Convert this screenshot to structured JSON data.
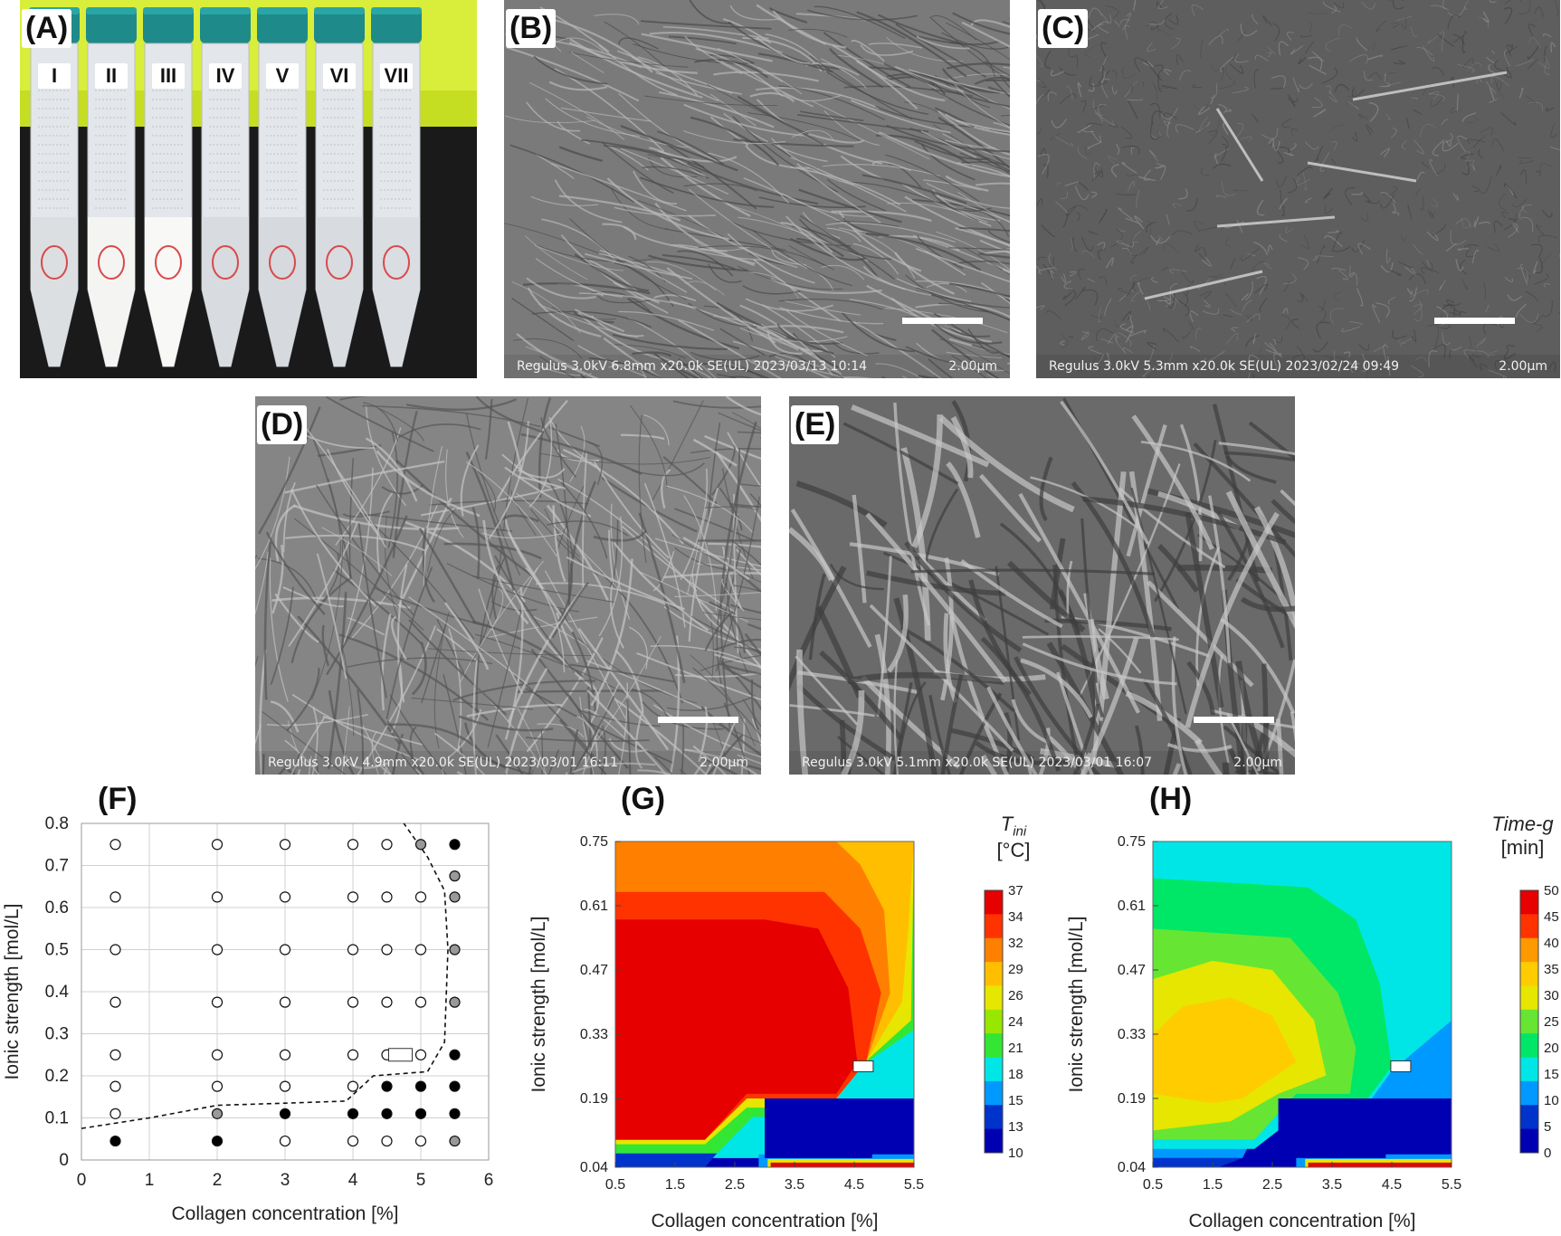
{
  "panels": {
    "A": {
      "label": "(A)",
      "tube_labels": [
        "I",
        "II",
        "III",
        "IV",
        "V",
        "VI",
        "VII"
      ]
    },
    "B": {
      "label": "(B)",
      "footer_left": "Regulus 3.0kV 6.8mm x20.0k SE(UL) 2023/03/13 10:14",
      "footer_right": "2.00μm"
    },
    "C": {
      "label": "(C)",
      "footer_left": "Regulus 3.0kV 5.3mm x20.0k SE(UL) 2023/02/24 09:49",
      "footer_right": "2.00μm"
    },
    "D": {
      "label": "(D)",
      "footer_left": "Regulus 3.0kV 4.9mm x20.0k SE(UL) 2023/03/01 16:11",
      "footer_right": "2.00μm"
    },
    "E": {
      "label": "(E)",
      "footer_left": "Regulus 3.0kV 5.1mm x20.0k SE(UL) 2023/03/01 16:07",
      "footer_right": "2.00μm"
    },
    "F": {
      "label": "(F)"
    },
    "G": {
      "label": "(G)",
      "cbar_title_main": "T",
      "cbar_title_sub": "ini",
      "cbar_unit": "[°C]"
    },
    "H": {
      "label": "(H)",
      "cbar_title": "Time-g",
      "cbar_unit": "[min]"
    }
  },
  "chart_data": [
    {
      "id": "F",
      "type": "scatter",
      "xlabel": "Collagen concentration [%]",
      "ylabel": "Ionic strength [mol/L]",
      "xlim": [
        0,
        6
      ],
      "ylim": [
        0,
        0.8
      ],
      "xticks": [
        0,
        1,
        2,
        3,
        4,
        5,
        6
      ],
      "yticks": [
        0,
        0.1,
        0.2,
        0.3,
        0.4,
        0.5,
        0.6,
        0.7,
        0.8
      ],
      "grid": true,
      "points": [
        {
          "x": 0.5,
          "y": 0.75,
          "s": "open"
        },
        {
          "x": 0.5,
          "y": 0.625,
          "s": "open"
        },
        {
          "x": 0.5,
          "y": 0.5,
          "s": "open"
        },
        {
          "x": 0.5,
          "y": 0.375,
          "s": "open"
        },
        {
          "x": 0.5,
          "y": 0.25,
          "s": "open"
        },
        {
          "x": 0.5,
          "y": 0.175,
          "s": "open"
        },
        {
          "x": 0.5,
          "y": 0.11,
          "s": "open"
        },
        {
          "x": 0.5,
          "y": 0.045,
          "s": "filled"
        },
        {
          "x": 2,
          "y": 0.75,
          "s": "open"
        },
        {
          "x": 2,
          "y": 0.625,
          "s": "open"
        },
        {
          "x": 2,
          "y": 0.5,
          "s": "open"
        },
        {
          "x": 2,
          "y": 0.375,
          "s": "open"
        },
        {
          "x": 2,
          "y": 0.25,
          "s": "open"
        },
        {
          "x": 2,
          "y": 0.175,
          "s": "open"
        },
        {
          "x": 2,
          "y": 0.11,
          "s": "gray"
        },
        {
          "x": 2,
          "y": 0.045,
          "s": "filled"
        },
        {
          "x": 3,
          "y": 0.75,
          "s": "open"
        },
        {
          "x": 3,
          "y": 0.625,
          "s": "open"
        },
        {
          "x": 3,
          "y": 0.5,
          "s": "open"
        },
        {
          "x": 3,
          "y": 0.375,
          "s": "open"
        },
        {
          "x": 3,
          "y": 0.25,
          "s": "open"
        },
        {
          "x": 3,
          "y": 0.175,
          "s": "open"
        },
        {
          "x": 3,
          "y": 0.11,
          "s": "filled"
        },
        {
          "x": 3,
          "y": 0.045,
          "s": "open"
        },
        {
          "x": 4,
          "y": 0.75,
          "s": "open"
        },
        {
          "x": 4,
          "y": 0.625,
          "s": "open"
        },
        {
          "x": 4,
          "y": 0.5,
          "s": "open"
        },
        {
          "x": 4,
          "y": 0.375,
          "s": "open"
        },
        {
          "x": 4,
          "y": 0.25,
          "s": "open"
        },
        {
          "x": 4,
          "y": 0.175,
          "s": "open"
        },
        {
          "x": 4,
          "y": 0.11,
          "s": "filled"
        },
        {
          "x": 4,
          "y": 0.045,
          "s": "open"
        },
        {
          "x": 4.5,
          "y": 0.75,
          "s": "open"
        },
        {
          "x": 4.5,
          "y": 0.625,
          "s": "open"
        },
        {
          "x": 4.5,
          "y": 0.5,
          "s": "open"
        },
        {
          "x": 4.5,
          "y": 0.375,
          "s": "open"
        },
        {
          "x": 4.5,
          "y": 0.25,
          "s": "open"
        },
        {
          "x": 4.5,
          "y": 0.175,
          "s": "filled"
        },
        {
          "x": 4.5,
          "y": 0.11,
          "s": "filled"
        },
        {
          "x": 4.5,
          "y": 0.045,
          "s": "open"
        },
        {
          "x": 5,
          "y": 0.75,
          "s": "gray"
        },
        {
          "x": 5,
          "y": 0.625,
          "s": "open"
        },
        {
          "x": 5,
          "y": 0.5,
          "s": "open"
        },
        {
          "x": 5,
          "y": 0.375,
          "s": "open"
        },
        {
          "x": 5,
          "y": 0.25,
          "s": "open"
        },
        {
          "x": 5,
          "y": 0.175,
          "s": "filled"
        },
        {
          "x": 5,
          "y": 0.11,
          "s": "filled"
        },
        {
          "x": 5,
          "y": 0.045,
          "s": "open"
        },
        {
          "x": 5.5,
          "y": 0.75,
          "s": "filled"
        },
        {
          "x": 5.5,
          "y": 0.675,
          "s": "gray"
        },
        {
          "x": 5.5,
          "y": 0.625,
          "s": "gray"
        },
        {
          "x": 5.5,
          "y": 0.5,
          "s": "gray"
        },
        {
          "x": 5.5,
          "y": 0.375,
          "s": "gray"
        },
        {
          "x": 5.5,
          "y": 0.25,
          "s": "filled"
        },
        {
          "x": 5.5,
          "y": 0.175,
          "s": "filled"
        },
        {
          "x": 5.5,
          "y": 0.11,
          "s": "filled"
        },
        {
          "x": 5.5,
          "y": 0.045,
          "s": "gray"
        }
      ],
      "boundary": [
        [
          0,
          0.075
        ],
        [
          1,
          0.1
        ],
        [
          2,
          0.13
        ],
        [
          3,
          0.135
        ],
        [
          3.9,
          0.14
        ],
        [
          4.3,
          0.2
        ],
        [
          5.1,
          0.21
        ],
        [
          5.35,
          0.28
        ],
        [
          5.4,
          0.5
        ],
        [
          5.35,
          0.64
        ],
        [
          5.1,
          0.72
        ],
        [
          4.75,
          0.8
        ]
      ],
      "marker_rect": {
        "x": 4.7,
        "y": 0.25
      }
    },
    {
      "id": "G",
      "type": "heatmap",
      "xlabel": "Collagen concentration [%]",
      "ylabel": "Ionic strength [mol/L]",
      "x": [
        0.5,
        1.5,
        2.5,
        3.5,
        4.5,
        5.5
      ],
      "y": [
        0.04,
        0.19,
        0.33,
        0.47,
        0.61,
        0.75
      ],
      "xlim": [
        0.5,
        5.5
      ],
      "ylim": [
        0.04,
        0.75
      ],
      "colorbar_ticks": [
        37,
        34,
        32,
        29,
        26,
        24,
        21,
        18,
        15,
        13,
        10
      ],
      "colorbar_colors": [
        "#e60000",
        "#ff3300",
        "#ff8000",
        "#ffbf00",
        "#e6e600",
        "#99e600",
        "#33e633",
        "#00e6e6",
        "#0099ff",
        "#0033cc",
        "#0000b3"
      ],
      "marker_rect": {
        "x": 4.65,
        "y": 0.26
      }
    },
    {
      "id": "H",
      "type": "heatmap",
      "xlabel": "Collagen concentration [%]",
      "ylabel": "Ionic strength [mol/L]",
      "x": [
        0.5,
        1.5,
        2.5,
        3.5,
        4.5,
        5.5
      ],
      "y": [
        0.04,
        0.19,
        0.33,
        0.47,
        0.61,
        0.75
      ],
      "xlim": [
        0.5,
        5.5
      ],
      "ylim": [
        0.04,
        0.75
      ],
      "colorbar_ticks": [
        50,
        45,
        40,
        35,
        30,
        25,
        20,
        15,
        10,
        5,
        0
      ],
      "colorbar_colors": [
        "#e60000",
        "#ff3300",
        "#ff9900",
        "#ffcc00",
        "#e6e600",
        "#66e633",
        "#00e666",
        "#00e6e6",
        "#0099ff",
        "#0033cc",
        "#0000b3"
      ],
      "marker_rect": {
        "x": 4.65,
        "y": 0.26
      }
    }
  ]
}
